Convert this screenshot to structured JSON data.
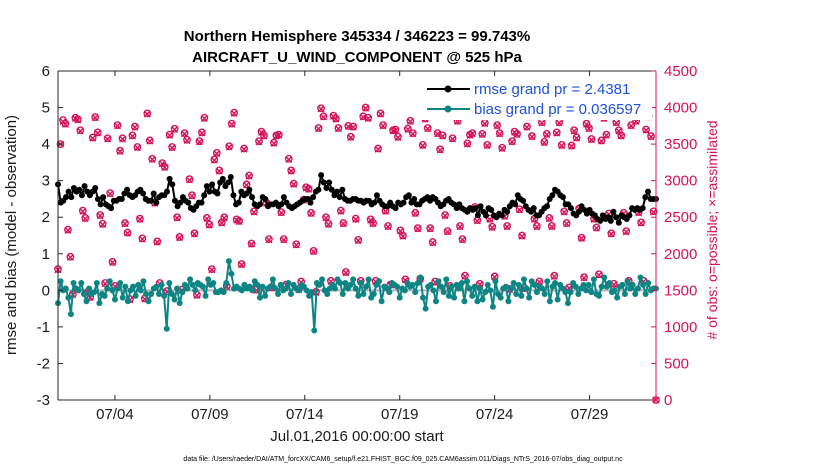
{
  "chart_data": {
    "type": "line",
    "title": "Northern Hemisphere 345334 / 346223 = 99.743%",
    "subtitle": "AIRCRAFT_U_WIND_COMPONENT @ 525 hPa",
    "xlabel": "Jul.01,2016 00:00:00 start",
    "ylabel": "rmse and bias (model - observation)",
    "ylabel_right": "# of obs: o=possible; ×=assimilated",
    "footnote": "data file: /Users/raeder/DAI/ATM_forcXX/CAM6_setup/f.e21.FHIST_BGC.f09_025.CAM6assim.011/Diags_NTrS_2016-07/obs_diag_output.nc",
    "xlim": [
      1,
      32.5
    ],
    "ylim": [
      -3,
      6
    ],
    "ylim_right": [
      0,
      4500
    ],
    "x_ticks": [
      4,
      9,
      14,
      19,
      24,
      29
    ],
    "x_tick_labels": [
      "07/04",
      "07/09",
      "07/14",
      "07/19",
      "07/24",
      "07/29"
    ],
    "y_ticks": [
      -3,
      -2,
      -1,
      0,
      1,
      2,
      3,
      4,
      5,
      6
    ],
    "y_tick_labels": [
      "-3",
      "-2",
      "-1",
      "0",
      "1",
      "2",
      "3",
      "4",
      "5",
      "6"
    ],
    "y_ticks_right": [
      0,
      500,
      1000,
      1500,
      2000,
      2500,
      3000,
      3500,
      4000,
      4500
    ],
    "y_tick_labels_right": [
      "0",
      "500",
      "1000",
      "1500",
      "2000",
      "2500",
      "3000",
      "3500",
      "4000",
      "4500"
    ],
    "grid": false,
    "legend_position": "top-right",
    "colors": {
      "rmse": "#000000",
      "bias": "#0e8585",
      "obs": "#d4145a",
      "zero": "#b3b3b3",
      "legend_text": "#1f50d8"
    },
    "series": [
      {
        "name": "rmse grand pr = 2.4381",
        "axis": "left",
        "style": "line+dot",
        "values": [
          2.9,
          2.4,
          2.45,
          2.55,
          2.7,
          2.55,
          2.8,
          2.7,
          2.75,
          2.6,
          2.85,
          2.7,
          2.6,
          2.7,
          2.8,
          2.5,
          2.35,
          2.55,
          2.35,
          2.3,
          2.25,
          2.45,
          2.45,
          2.5,
          2.5,
          2.65,
          2.75,
          2.6,
          2.55,
          2.6,
          2.7,
          2.75,
          2.65,
          2.5,
          2.45,
          2.45,
          2.65,
          2.4,
          2.55,
          2.6,
          2.6,
          2.7,
          3.05,
          2.9,
          2.45,
          2.3,
          2.4,
          2.55,
          2.45,
          2.4,
          2.25,
          2.2,
          2.3,
          2.4,
          2.4,
          2.6,
          2.85,
          2.7,
          2.9,
          2.7,
          2.65,
          2.95,
          3.05,
          2.85,
          2.95,
          3.1,
          2.6,
          2.35,
          2.4,
          2.7,
          2.6,
          2.65,
          2.75,
          2.55,
          2.35,
          2.3,
          2.35,
          2.55,
          2.5,
          2.3,
          2.35,
          2.35,
          2.4,
          2.3,
          2.35,
          2.55,
          2.4,
          2.3,
          2.25,
          2.3,
          2.35,
          2.4,
          2.45,
          2.5,
          2.5,
          2.4,
          2.55,
          2.7,
          2.75,
          3.15,
          2.95,
          2.8,
          2.95,
          2.75,
          2.6,
          2.7,
          2.55,
          2.75,
          2.5,
          2.45,
          2.45,
          2.5,
          2.5,
          2.45,
          2.45,
          2.4,
          2.45,
          2.45,
          2.35,
          2.4,
          2.6,
          2.45,
          2.35,
          2.3,
          2.3,
          2.4,
          2.3,
          2.25,
          2.4,
          2.35,
          2.4,
          2.55,
          2.6,
          2.4,
          2.5,
          2.35,
          2.35,
          2.45,
          2.5,
          2.55,
          2.45,
          2.55,
          2.5,
          2.4,
          2.3,
          2.35,
          2.45,
          2.5,
          2.4,
          2.35,
          2.25,
          2.35,
          2.25,
          2.2,
          2.15,
          2.25,
          2.2,
          2.25,
          2.05,
          2.3,
          2.15,
          2.05,
          2.25,
          2.2,
          2.05,
          2.0,
          2.1,
          2.05,
          2.2,
          2.15,
          2.3,
          2.4,
          2.35,
          2.6,
          2.5,
          2.45,
          2.3,
          2.2,
          2.15,
          2.25,
          2.05,
          2.05,
          2.15,
          2.25,
          2.3,
          2.5,
          2.6,
          2.75,
          2.7,
          2.6,
          2.55,
          2.35,
          2.35,
          2.25,
          2.1,
          2.05,
          2.15,
          2.3,
          2.2,
          2.1,
          2.2,
          2.1,
          2.05,
          1.95,
          1.9,
          2.05,
          1.95,
          2.0,
          1.9,
          2.15,
          2.0,
          1.85,
          2.05,
          2.0,
          1.95,
          2.05,
          2.25,
          2.2,
          2.25,
          2.2,
          2.25,
          2.55,
          2.7,
          2.5,
          2.5,
          2.5
        ]
      },
      {
        "name": "bias grand pr = 0.036597",
        "axis": "left",
        "style": "line+dot",
        "values": [
          -0.35,
          0.25,
          0.0,
          0.05,
          -0.2,
          -0.65,
          0.2,
          0.05,
          0.0,
          0.2,
          -0.1,
          -0.3,
          0.05,
          -0.1,
          -0.05,
          0.2,
          -0.35,
          -0.1,
          -0.15,
          0.05,
          0.25,
          0.0,
          -0.25,
          0.05,
          0.2,
          -0.2,
          0.1,
          -0.3,
          0.0,
          0.1,
          -0.15,
          0.15,
          0.0,
          0.25,
          -0.1,
          -0.3,
          -0.1,
          0.05,
          0.1,
          -0.1,
          0.15,
          -0.15,
          -1.05,
          0.2,
          -0.1,
          -0.25,
          0.05,
          -0.35,
          -0.05,
          0.15,
          0.05,
          0.3,
          0.15,
          0.0,
          0.2,
          0.15,
          0.1,
          -0.15,
          0.3,
          0.15,
          0.2,
          -0.05,
          -0.05,
          0.0,
          -0.05,
          0.2,
          0.8,
          0.45,
          0.05,
          0.1,
          0.05,
          0.0,
          0.15,
          0.05,
          0.1,
          0.0,
          0.25,
          0.15,
          -0.2,
          0.1,
          -0.15,
          0.05,
          0.1,
          0.3,
          0.05,
          -0.1,
          0.15,
          0.0,
          0.05,
          0.2,
          -0.1,
          0.15,
          0.05,
          0.0,
          0.15,
          0.1,
          0.0,
          -0.15,
          -0.05,
          -1.1,
          0.2,
          0.15,
          0.3,
          0.0,
          -0.1,
          0.05,
          0.15,
          0.05,
          0.3,
          0.2,
          -0.1,
          0.2,
          0.05,
          0.15,
          0.3,
          0.05,
          -0.15,
          0.2,
          -0.1,
          0.1,
          0.3,
          -0.2,
          -0.1,
          0.15,
          0.25,
          -0.3,
          0.1,
          0.05,
          -0.05,
          0.2,
          0.15,
          0.1,
          -0.2,
          0.05,
          0.0,
          0.2,
          0.1,
          0.15,
          -0.05,
          0.2,
          0.35,
          -0.2,
          -0.5,
          0.1,
          0.15,
          0.0,
          -0.3,
          0.25,
          0.1,
          -0.05,
          0.3,
          -0.15,
          0.1,
          -0.2,
          0.15,
          0.05,
          0.2,
          -0.3,
          0.25,
          0.05,
          -0.15,
          0.1,
          -0.3,
          0.05,
          -0.25,
          -0.05,
          0.15,
          0.0,
          -0.45,
          0.25,
          -0.1,
          -0.2,
          0.05,
          0.1,
          -0.3,
          0.05,
          0.2,
          -0.1,
          0.15,
          -0.15,
          0.3,
          0.05,
          -0.2,
          0.25,
          0.15,
          -0.05,
          0.1,
          0.05,
          -0.1,
          0.25,
          -0.3,
          0.1,
          0.2,
          -0.25,
          0.15,
          0.05,
          -0.05,
          -0.35,
          -0.05,
          0.2,
          0.1,
          -0.1,
          0.05,
          0.15,
          0.0,
          0.15,
          -0.05,
          0.3,
          -0.1,
          -0.15,
          0.1,
          0.35,
          0.1,
          0.2,
          -0.05,
          0.0,
          -0.2,
          0.1,
          0.15,
          -0.1,
          0.25,
          0.05,
          0.15,
          -0.1,
          0.05,
          0.35,
          0.15,
          -0.1,
          0.2,
          0.0,
          0.05,
          0.05
        ]
      },
      {
        "name": "# of obs (possible, o)",
        "axis": "right",
        "style": "marker-o",
        "values": [
          1790,
          3500,
          3830,
          3780,
          2330,
          1960,
          1450,
          3860,
          3840,
          3690,
          2590,
          2490,
          1480,
          1410,
          3590,
          3870,
          3660,
          2530,
          2410,
          1600,
          3580,
          2830,
          1890,
          1560,
          3760,
          3410,
          3580,
          2420,
          2290,
          1380,
          3620,
          3740,
          3460,
          2480,
          2210,
          1390,
          3920,
          3550,
          3300,
          2700,
          2170,
          1600,
          3240,
          3190,
          1490,
          3630,
          3460,
          3710,
          2500,
          2230,
          1510,
          3650,
          3560,
          3020,
          2800,
          2280,
          1440,
          3540,
          3660,
          3860,
          2490,
          2400,
          1790,
          3290,
          3380,
          3140,
          2430,
          2500,
          1560,
          3470,
          3780,
          3930,
          2470,
          2450,
          1860,
          3440,
          2950,
          3070,
          2140,
          2580,
          1510,
          3540,
          3670,
          3620,
          2700,
          2200,
          1540,
          3520,
          3620,
          3630,
          2570,
          2200,
          1580,
          3300,
          3140,
          2960,
          2130,
          1520,
          1620,
          2740,
          2910,
          2890,
          2560,
          2040,
          1480,
          3720,
          3990,
          3880,
          2500,
          2410,
          1630,
          3890,
          3850,
          3720,
          2590,
          2420,
          1750,
          3750,
          3600,
          3740,
          2480,
          2190,
          1630,
          3880,
          4000,
          3860,
          2470,
          2420,
          1630,
          3440,
          3920,
          3760,
          2590,
          2380,
          1580,
          3690,
          3700,
          3600,
          2320,
          2250,
          1650,
          3710,
          3820,
          3650,
          2560,
          2350,
          1660,
          3490,
          3850,
          3720,
          2350,
          2160,
          1620,
          3650,
          3430,
          3620,
          2530,
          2310,
          1560,
          3580,
          3980,
          3820,
          2380,
          2200,
          1700,
          3510,
          3630,
          3650,
          2640,
          2460,
          1590,
          3640,
          3790,
          3490,
          2480,
          2370,
          1690,
          3760,
          3650,
          3450,
          2520,
          2380,
          1520,
          3540,
          3670,
          3640,
          2610,
          2250,
          1530,
          3740,
          3880,
          3610,
          2480,
          2380,
          1620,
          3800,
          3530,
          3640,
          2490,
          2380,
          1700,
          3660,
          3800,
          3490,
          2580,
          2420,
          1540,
          3480,
          3690,
          3590,
          2620,
          2220,
          1680,
          3780,
          3720,
          3570,
          2480,
          2360,
          1720,
          3550,
          3860,
          3630,
          2550,
          2280,
          1590,
          3800,
          3690,
          3620,
          2560,
          2310,
          1630,
          3760,
          3950,
          3820,
          2570,
          2430,
          1630,
          3700,
          3880,
          3610,
          2580,
          0
        ]
      },
      {
        "name": "# of obs (assimilated, ×)",
        "axis": "right",
        "style": "marker-x",
        "values": [
          1780,
          3500,
          3810,
          3770,
          2320,
          1950,
          1440,
          3850,
          3830,
          3680,
          2580,
          2480,
          1470,
          1400,
          3580,
          3860,
          3650,
          2520,
          2400,
          1590,
          3570,
          2820,
          1880,
          1550,
          3750,
          3400,
          3570,
          2410,
          2280,
          1370,
          3610,
          3730,
          3450,
          2470,
          2200,
          1380,
          3910,
          3540,
          3290,
          2690,
          2160,
          1590,
          3230,
          3180,
          1480,
          3620,
          3450,
          3700,
          2490,
          2220,
          1500,
          3640,
          3550,
          3010,
          2790,
          2270,
          1430,
          3530,
          3650,
          3850,
          2480,
          2390,
          1780,
          3280,
          3370,
          3130,
          2420,
          2490,
          1550,
          3460,
          3770,
          3920,
          2460,
          2440,
          1850,
          3430,
          2940,
          3060,
          2130,
          2570,
          1500,
          3530,
          3660,
          3610,
          2690,
          2190,
          1530,
          3510,
          3610,
          3620,
          2560,
          2190,
          1570,
          3290,
          3130,
          2950,
          2120,
          1510,
          1610,
          2730,
          2900,
          2880,
          2550,
          2030,
          1470,
          3710,
          3980,
          3870,
          2490,
          2400,
          1620,
          3880,
          3840,
          3710,
          2580,
          2410,
          1740,
          3740,
          3590,
          3730,
          2470,
          2180,
          1620,
          3870,
          3990,
          3850,
          2460,
          2410,
          1620,
          3430,
          3910,
          3750,
          2580,
          2370,
          1570,
          3680,
          3690,
          3590,
          2310,
          2240,
          1640,
          3700,
          3810,
          3640,
          2550,
          2340,
          1650,
          3480,
          3840,
          3710,
          2340,
          2150,
          1610,
          3640,
          3420,
          3610,
          2520,
          2300,
          1550,
          3570,
          3970,
          3810,
          2370,
          2190,
          1690,
          3500,
          3620,
          3640,
          2630,
          2450,
          1580,
          3630,
          3780,
          3480,
          2470,
          2360,
          1680,
          3750,
          3640,
          3440,
          2510,
          2370,
          1510,
          3530,
          3660,
          3630,
          2600,
          2240,
          1520,
          3730,
          3870,
          3600,
          2470,
          2370,
          1610,
          3790,
          3520,
          3630,
          2480,
          2370,
          1690,
          3650,
          3790,
          3480,
          2570,
          2410,
          1530,
          3470,
          3680,
          3580,
          2610,
          2210,
          1670,
          3770,
          3710,
          3560,
          2470,
          2350,
          1710,
          3540,
          3850,
          3620,
          2540,
          2270,
          1580,
          3790,
          3680,
          3610,
          2550,
          2300,
          1620,
          3750,
          3940,
          3810,
          2560,
          2420,
          1620,
          3690,
          3870,
          3600,
          2570,
          0
        ]
      }
    ],
    "legend": [
      "rmse grand pr = 2.4381",
      "bias grand pr = 0.036597"
    ]
  }
}
